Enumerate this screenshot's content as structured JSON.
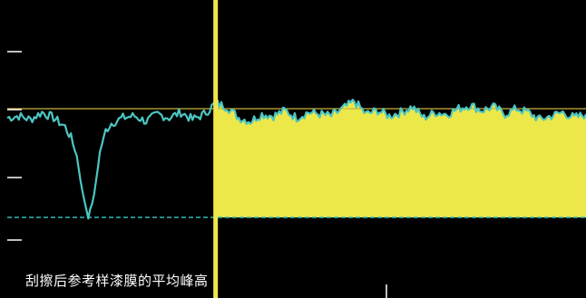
{
  "caption": "刮擦后参考样漆膜的平均峰高",
  "colors": {
    "background": "#000000",
    "trace": "#4cc6c2",
    "fill": "#ece84a",
    "cursor": "#f2e64a",
    "reference_line": "#c8b43c",
    "baseline": "#35b9b4",
    "tick": "#ffffff"
  },
  "chart_data": {
    "type": "area",
    "title": "",
    "xlabel": "",
    "ylabel": "",
    "grid": false,
    "legend": "none",
    "xlim": [
      0,
      100
    ],
    "ylim": [
      0,
      100
    ],
    "cursor_x": 36,
    "reference_level": 60,
    "baseline_level": 0,
    "fill_from_x": 36,
    "series": [
      {
        "x": [
          0,
          2,
          4,
          6,
          8,
          10,
          11,
          12,
          13,
          14,
          15,
          16,
          17,
          18,
          20,
          22,
          24,
          26,
          28,
          30,
          32,
          34,
          36,
          38,
          40,
          42,
          44,
          46,
          48,
          50,
          52,
          54,
          56,
          58,
          60,
          62,
          64,
          66,
          68,
          70,
          72,
          74,
          76,
          78,
          80,
          82,
          84,
          86,
          88,
          90,
          92,
          94,
          96,
          98,
          100
        ],
        "y": [
          55,
          56,
          54,
          58,
          55,
          50,
          44,
          34,
          14,
          0,
          12,
          36,
          48,
          52,
          55,
          56,
          53,
          57,
          55,
          58,
          54,
          57,
          63,
          61,
          55,
          53,
          57,
          56,
          59,
          55,
          58,
          57,
          56,
          60,
          64,
          57,
          59,
          56,
          58,
          61,
          55,
          58,
          57,
          60,
          62,
          59,
          61,
          57,
          60,
          58,
          54,
          56,
          58,
          55,
          57
        ]
      }
    ]
  }
}
